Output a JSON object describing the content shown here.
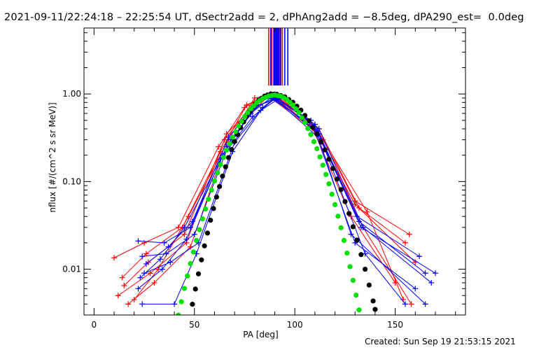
{
  "title": "2021-09-11/22:24:18 – 22:25:54 UT, dSectr2add = 2, dPhAng2add = −8.5deg, dPA290_est=  0.0deg",
  "footer": "Created: Sun Sep 19 21:53:15 2021",
  "chart_data": {
    "type": "line",
    "xlabel": "PA [deg]",
    "ylabel": "nflux [#/(cm^2 s sr MeV)]",
    "xlim": [
      -5,
      185
    ],
    "ylim": [
      0.003,
      5.66
    ],
    "yscale": "log",
    "xticks": [
      0,
      50,
      100,
      150
    ],
    "xtick_labels": [
      "0",
      "50",
      "100",
      "150"
    ],
    "yticks": [
      0.01,
      0.1,
      1.0
    ],
    "ytick_labels": [
      "0.01",
      "0.10",
      "1.00"
    ],
    "colors": {
      "red": "#ff0000",
      "blue": "#0000ff",
      "black": "#000000",
      "green": "#00e000"
    },
    "fits": [
      {
        "name": "black-fit",
        "color": "black",
        "x": [
          49,
          52,
          55,
          58,
          61,
          64,
          67,
          70,
          73,
          76,
          79,
          82,
          85,
          88,
          91,
          95,
          99,
          103,
          107,
          111,
          115,
          119,
          123,
          127,
          131,
          135,
          139,
          141
        ],
        "y": [
          0.00398,
          0.00884,
          0.01845,
          0.0362,
          0.0667,
          0.1155,
          0.188,
          0.287,
          0.413,
          0.558,
          0.708,
          0.845,
          0.946,
          0.997,
          0.991,
          0.925,
          0.804,
          0.653,
          0.494,
          0.349,
          0.23,
          0.141,
          0.0809,
          0.0432,
          0.0215,
          0.01,
          0.00434,
          0.00279
        ]
      },
      {
        "name": "green-fit",
        "color": "green",
        "x": [
          42,
          45,
          48,
          51,
          54,
          57,
          60,
          63,
          66,
          69,
          72,
          75,
          78,
          81,
          84,
          87,
          90,
          93,
          96,
          99,
          102,
          105,
          108,
          111,
          114,
          117,
          120,
          123,
          126,
          129,
          132
        ],
        "y": [
          0.00299,
          0.00603,
          0.0116,
          0.0213,
          0.0375,
          0.0631,
          0.1014,
          0.156,
          0.229,
          0.321,
          0.431,
          0.552,
          0.676,
          0.792,
          0.887,
          0.948,
          0.97,
          0.943,
          0.865,
          0.749,
          0.612,
          0.472,
          0.344,
          0.237,
          0.154,
          0.0942,
          0.0545,
          0.0297,
          0.0153,
          0.00746,
          0.00343
        ]
      }
    ],
    "series": [
      {
        "color": "red",
        "x": [
          10,
          25,
          42,
          62,
          75,
          88,
          110,
          130,
          157
        ],
        "y": [
          0.0135,
          0.02,
          0.03,
          0.25,
          0.7,
          1.0,
          0.45,
          0.06,
          0.025
        ]
      },
      {
        "color": "red",
        "x": [
          15,
          27,
          45,
          65,
          80,
          90,
          112,
          132,
          155
        ],
        "y": [
          0.0065,
          0.012,
          0.025,
          0.3,
          0.8,
          0.98,
          0.4,
          0.05,
          0.02
        ]
      },
      {
        "color": "red",
        "x": [
          12,
          28,
          46,
          66,
          82,
          92,
          108,
          128,
          150
        ],
        "y": [
          0.005,
          0.009,
          0.02,
          0.35,
          0.85,
          0.95,
          0.45,
          0.04,
          0.007
        ]
      },
      {
        "color": "red",
        "x": [
          17,
          30,
          48,
          64,
          78,
          88,
          112,
          134,
          158
        ],
        "y": [
          0.004,
          0.007,
          0.018,
          0.2,
          0.6,
          1.0,
          0.35,
          0.03,
          0.004
        ]
      },
      {
        "color": "red",
        "x": [
          14,
          26,
          44,
          63,
          76,
          86,
          110,
          130,
          160
        ],
        "y": [
          0.008,
          0.015,
          0.03,
          0.22,
          0.75,
          0.97,
          0.38,
          0.055,
          0.012
        ]
      },
      {
        "color": "red",
        "x": [
          20,
          32,
          47,
          67,
          80,
          90,
          114,
          136,
          154
        ],
        "y": [
          0.0045,
          0.01,
          0.04,
          0.3,
          0.9,
          0.99,
          0.3,
          0.045,
          0.0045
        ]
      },
      {
        "color": "blue",
        "x": [
          22,
          35,
          48,
          66,
          80,
          90,
          110,
          132,
          165
        ],
        "y": [
          0.021,
          0.02,
          0.03,
          0.25,
          0.7,
          0.9,
          0.45,
          0.035,
          0.009
        ]
      },
      {
        "color": "blue",
        "x": [
          24,
          36,
          50,
          68,
          82,
          92,
          112,
          134,
          168
        ],
        "y": [
          0.014,
          0.015,
          0.025,
          0.3,
          0.75,
          0.88,
          0.4,
          0.03,
          0.007
        ]
      },
      {
        "color": "blue",
        "x": [
          25,
          38,
          52,
          70,
          84,
          90,
          108,
          130,
          160
        ],
        "y": [
          0.009,
          0.012,
          0.02,
          0.28,
          0.7,
          0.9,
          0.5,
          0.02,
          0.006
        ]
      },
      {
        "color": "blue",
        "x": [
          22,
          34,
          46,
          64,
          78,
          88,
          110,
          128,
          165
        ],
        "y": [
          0.006,
          0.01,
          0.022,
          0.2,
          0.6,
          0.9,
          0.42,
          0.025,
          0.004
        ]
      },
      {
        "color": "blue",
        "x": [
          24,
          40,
          51,
          69,
          83,
          91,
          112,
          135,
          155
        ],
        "y": [
          0.004,
          0.004,
          0.015,
          0.22,
          0.65,
          0.85,
          0.35,
          0.015,
          0.004
        ]
      },
      {
        "color": "blue",
        "x": [
          26,
          37,
          49,
          67,
          81,
          89,
          111,
          131,
          162
        ],
        "y": [
          0.0115,
          0.018,
          0.035,
          0.32,
          0.8,
          0.92,
          0.38,
          0.04,
          0.014
        ]
      },
      {
        "color": "blue",
        "x": [
          23,
          33,
          45,
          63,
          79,
          90,
          113,
          133,
          170
        ],
        "y": [
          0.008,
          0.013,
          0.03,
          0.18,
          0.55,
          0.88,
          0.3,
          0.03,
          0.009
        ]
      }
    ],
    "vertical_lines": {
      "y_bottom": 1.25,
      "lines": [
        {
          "x": 87,
          "color": "red"
        },
        {
          "x": 88,
          "color": "blue"
        },
        {
          "x": 88.5,
          "color": "red"
        },
        {
          "x": 89.5,
          "color": "blue"
        },
        {
          "x": 90,
          "color": "blue"
        },
        {
          "x": 90.5,
          "color": "blue"
        },
        {
          "x": 91,
          "color": "blue"
        },
        {
          "x": 91.5,
          "color": "blue"
        },
        {
          "x": 92,
          "color": "blue"
        },
        {
          "x": 92.5,
          "color": "red"
        },
        {
          "x": 93,
          "color": "blue"
        },
        {
          "x": 93.8,
          "color": "red"
        },
        {
          "x": 95,
          "color": "blue"
        },
        {
          "x": 96.5,
          "color": "blue"
        }
      ]
    }
  }
}
